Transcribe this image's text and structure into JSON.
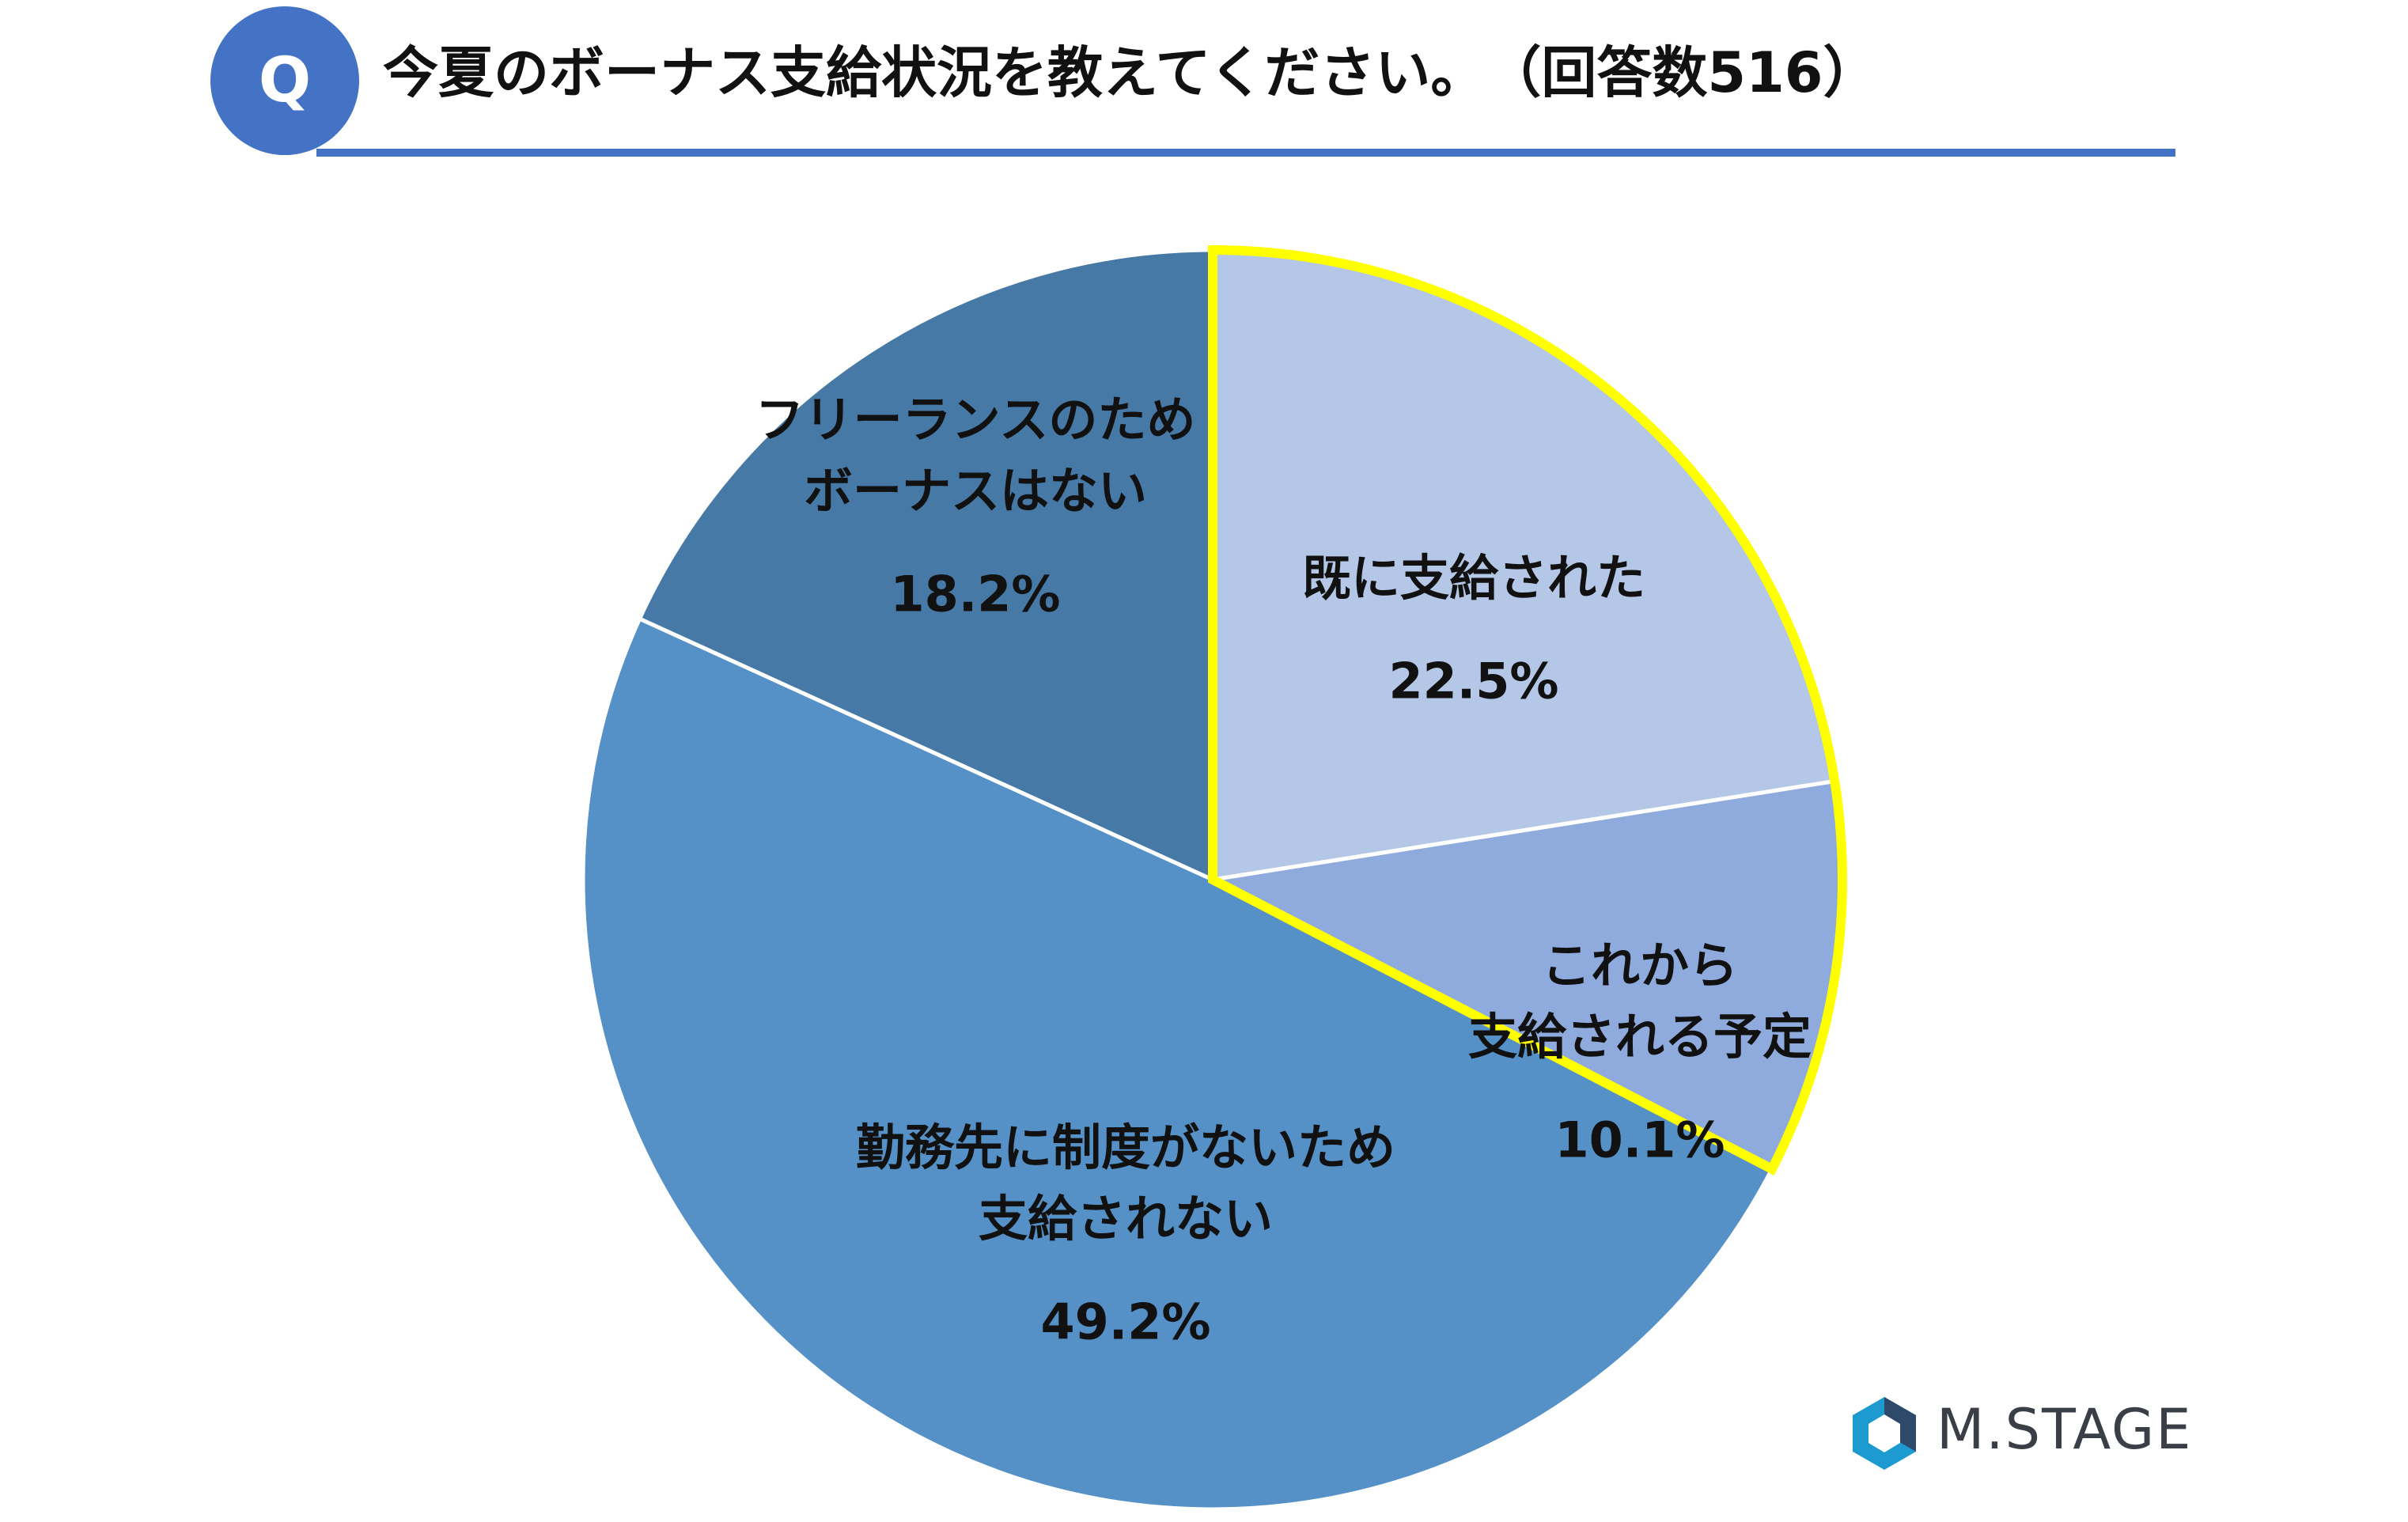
{
  "header": {
    "badge": "Q",
    "title": "今夏のボーナス支給状況を教えてください。　（回答数516）"
  },
  "logo": {
    "text": "M.STAGE",
    "icon": "hexagon-logo-icon"
  },
  "colors": {
    "accent": "#4472c4",
    "highlight_outline": "#ffff00"
  },
  "chart_data": {
    "type": "pie",
    "start_angle_deg": 0,
    "direction": "clockwise",
    "slices": [
      {
        "label_lines": [
          "既に支給された"
        ],
        "value": 22.5,
        "value_label": "22.5%",
        "color": "#b4c7e7",
        "highlighted": true
      },
      {
        "label_lines": [
          "これから",
          "支給される予定"
        ],
        "value": 10.1,
        "value_label": "10.1%",
        "color": "#8faadc",
        "highlighted": true
      },
      {
        "label_lines": [
          "勤務先に制度がないため",
          "支給されない"
        ],
        "value": 49.2,
        "value_label": "49.2%",
        "color": "#5590c7",
        "highlighted": false
      },
      {
        "label_lines": [
          "フリーランスのため",
          "ボーナスはない"
        ],
        "value": 18.2,
        "value_label": "18.2%",
        "color": "#4679a6",
        "highlighted": false
      }
    ]
  }
}
